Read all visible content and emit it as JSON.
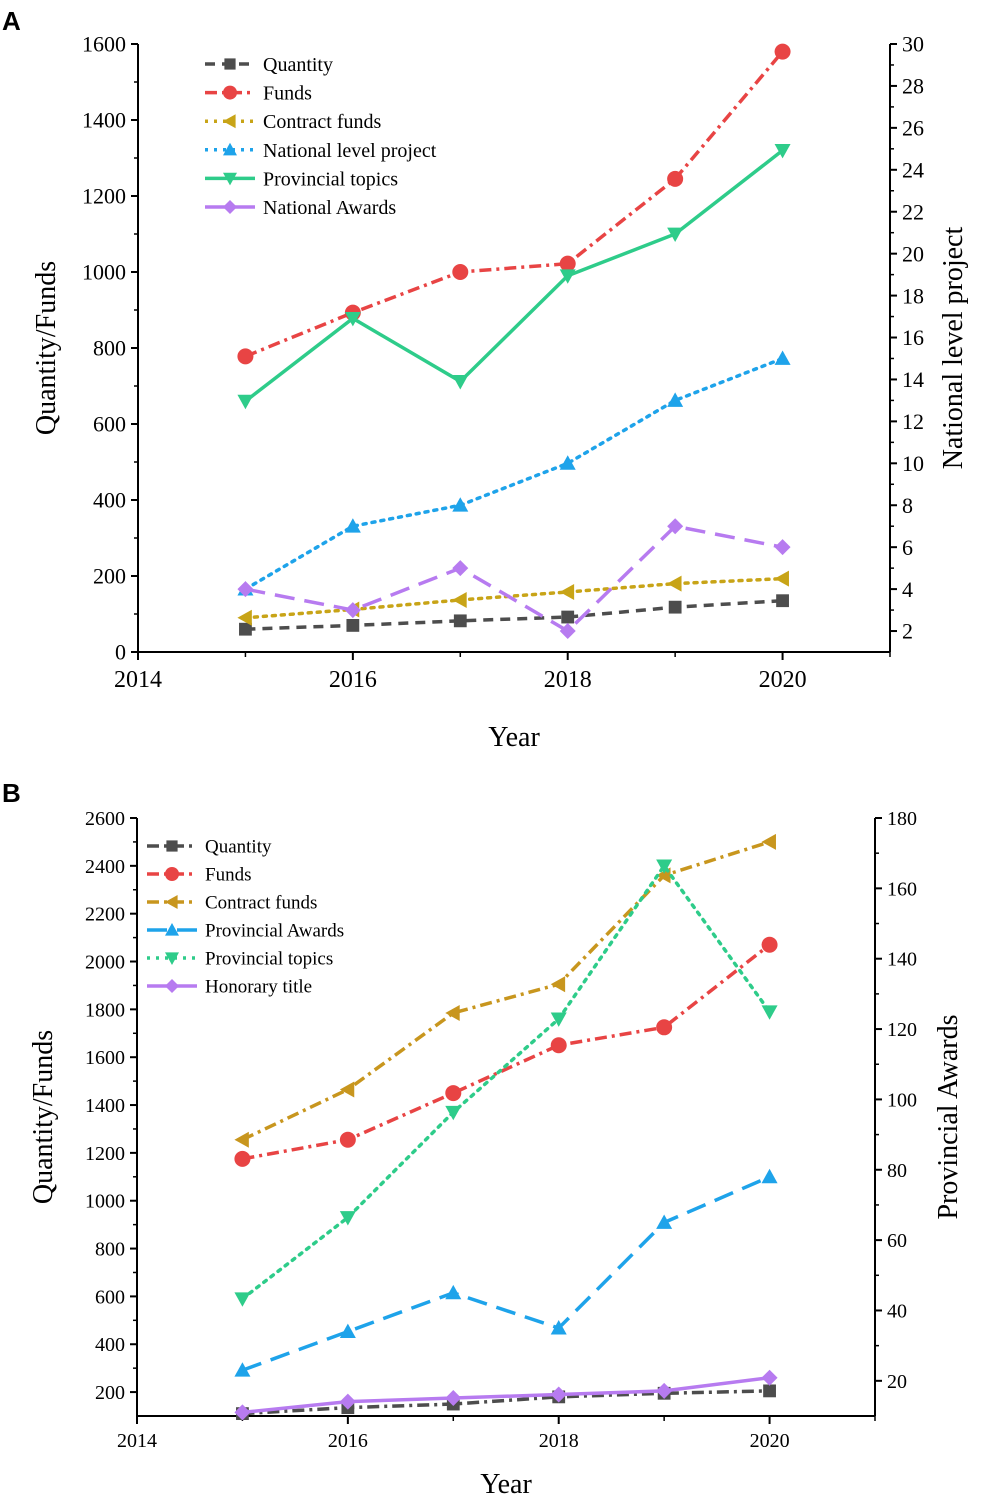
{
  "chart_data": [
    {
      "panel": "A",
      "type": "line",
      "xlabel": "Year",
      "ylabel": "Quantity/Funds",
      "y2label": "National level project",
      "xlim": [
        2014,
        2021
      ],
      "ylim": [
        0,
        1600
      ],
      "y2lim": [
        1,
        30
      ],
      "xticks": [
        "2014",
        "2016",
        "2018",
        "2020"
      ],
      "yticks": [
        "0",
        "200",
        "400",
        "600",
        "800",
        "1000",
        "1200",
        "1400",
        "1600"
      ],
      "y2ticks": [
        "2",
        "4",
        "6",
        "8",
        "10",
        "12",
        "14",
        "16",
        "18",
        "20",
        "22",
        "24",
        "26",
        "28",
        "30"
      ],
      "legend_position": "top-left",
      "x": [
        2015,
        2016,
        2017,
        2018,
        2019,
        2020
      ],
      "series": [
        {
          "name": "Quantity",
          "axis": "left",
          "color": "#4d4d4d",
          "marker": "square",
          "dash": "dash",
          "values": [
            60,
            70,
            82,
            92,
            118,
            135
          ]
        },
        {
          "name": "Funds",
          "axis": "left",
          "color": "#e84444",
          "marker": "circle",
          "dash": "dashdot",
          "values": [
            778,
            893,
            1000,
            1022,
            1245,
            1580
          ]
        },
        {
          "name": "Contract funds",
          "axis": "left",
          "color": "#c8a417",
          "marker": "triangle-left",
          "dash": "dot",
          "values": [
            90,
            112,
            137,
            158,
            180,
            193
          ]
        },
        {
          "name": "National level project",
          "axis": "right",
          "color": "#1ea3ea",
          "marker": "triangle-up",
          "dash": "dot",
          "values": [
            4,
            7,
            8,
            10,
            13,
            15
          ]
        },
        {
          "name": "Provincial topics",
          "axis": "left",
          "color": "#2ecc8a",
          "marker": "triangle-down",
          "dash": "solid",
          "values": [
            660,
            878,
            712,
            990,
            1100,
            1320
          ]
        },
        {
          "name": "National Awards",
          "axis": "right",
          "color": "#b77bf0",
          "marker": "diamond",
          "dash": "longdash",
          "values": [
            4,
            3,
            5,
            2,
            7,
            6
          ]
        }
      ]
    },
    {
      "panel": "B",
      "type": "line",
      "xlabel": "Year",
      "ylabel": "Quantity/Funds",
      "y2label": "Provincial Awards",
      "xlim": [
        2014,
        2021
      ],
      "ylim": [
        100,
        2600
      ],
      "y2lim": [
        10,
        180
      ],
      "xticks": [
        "2014",
        "2016",
        "2018",
        "2020"
      ],
      "yticks": [
        "200",
        "400",
        "600",
        "800",
        "1000",
        "1200",
        "1400",
        "1600",
        "1800",
        "2000",
        "2200",
        "2400",
        "2600"
      ],
      "y2ticks": [
        "20",
        "40",
        "60",
        "80",
        "100",
        "120",
        "140",
        "160",
        "180"
      ],
      "legend_position": "top-left",
      "x": [
        2015,
        2016,
        2017,
        2018,
        2019,
        2020
      ],
      "series": [
        {
          "name": "Quantity",
          "axis": "left",
          "color": "#4d4d4d",
          "marker": "square",
          "dash": "dashdot",
          "values": [
            110,
            135,
            150,
            180,
            195,
            205
          ]
        },
        {
          "name": "Funds",
          "axis": "left",
          "color": "#e84444",
          "marker": "circle",
          "dash": "dashdot",
          "values": [
            1175,
            1255,
            1450,
            1650,
            1725,
            2070
          ]
        },
        {
          "name": "Contract funds",
          "axis": "left",
          "color": "#c8961e",
          "marker": "triangle-left",
          "dash": "dashdot",
          "values": [
            1255,
            1465,
            1785,
            1905,
            2360,
            2500
          ]
        },
        {
          "name": "Provincial Awards",
          "axis": "right",
          "color": "#1ea3ea",
          "marker": "triangle-up",
          "dash": "longdash",
          "values": [
            23,
            34,
            45,
            35,
            65,
            78
          ]
        },
        {
          "name": "Provincial topics",
          "axis": "left",
          "color": "#2ecc8a",
          "marker": "triangle-down",
          "dash": "dot",
          "values": [
            590,
            930,
            1370,
            1760,
            2400,
            1790
          ]
        },
        {
          "name": "Honorary title",
          "axis": "left",
          "color": "#b77bf0",
          "marker": "diamond",
          "dash": "solid",
          "values": [
            115,
            160,
            175,
            190,
            205,
            260
          ]
        }
      ]
    }
  ],
  "panel_labels": [
    "A",
    "B"
  ]
}
